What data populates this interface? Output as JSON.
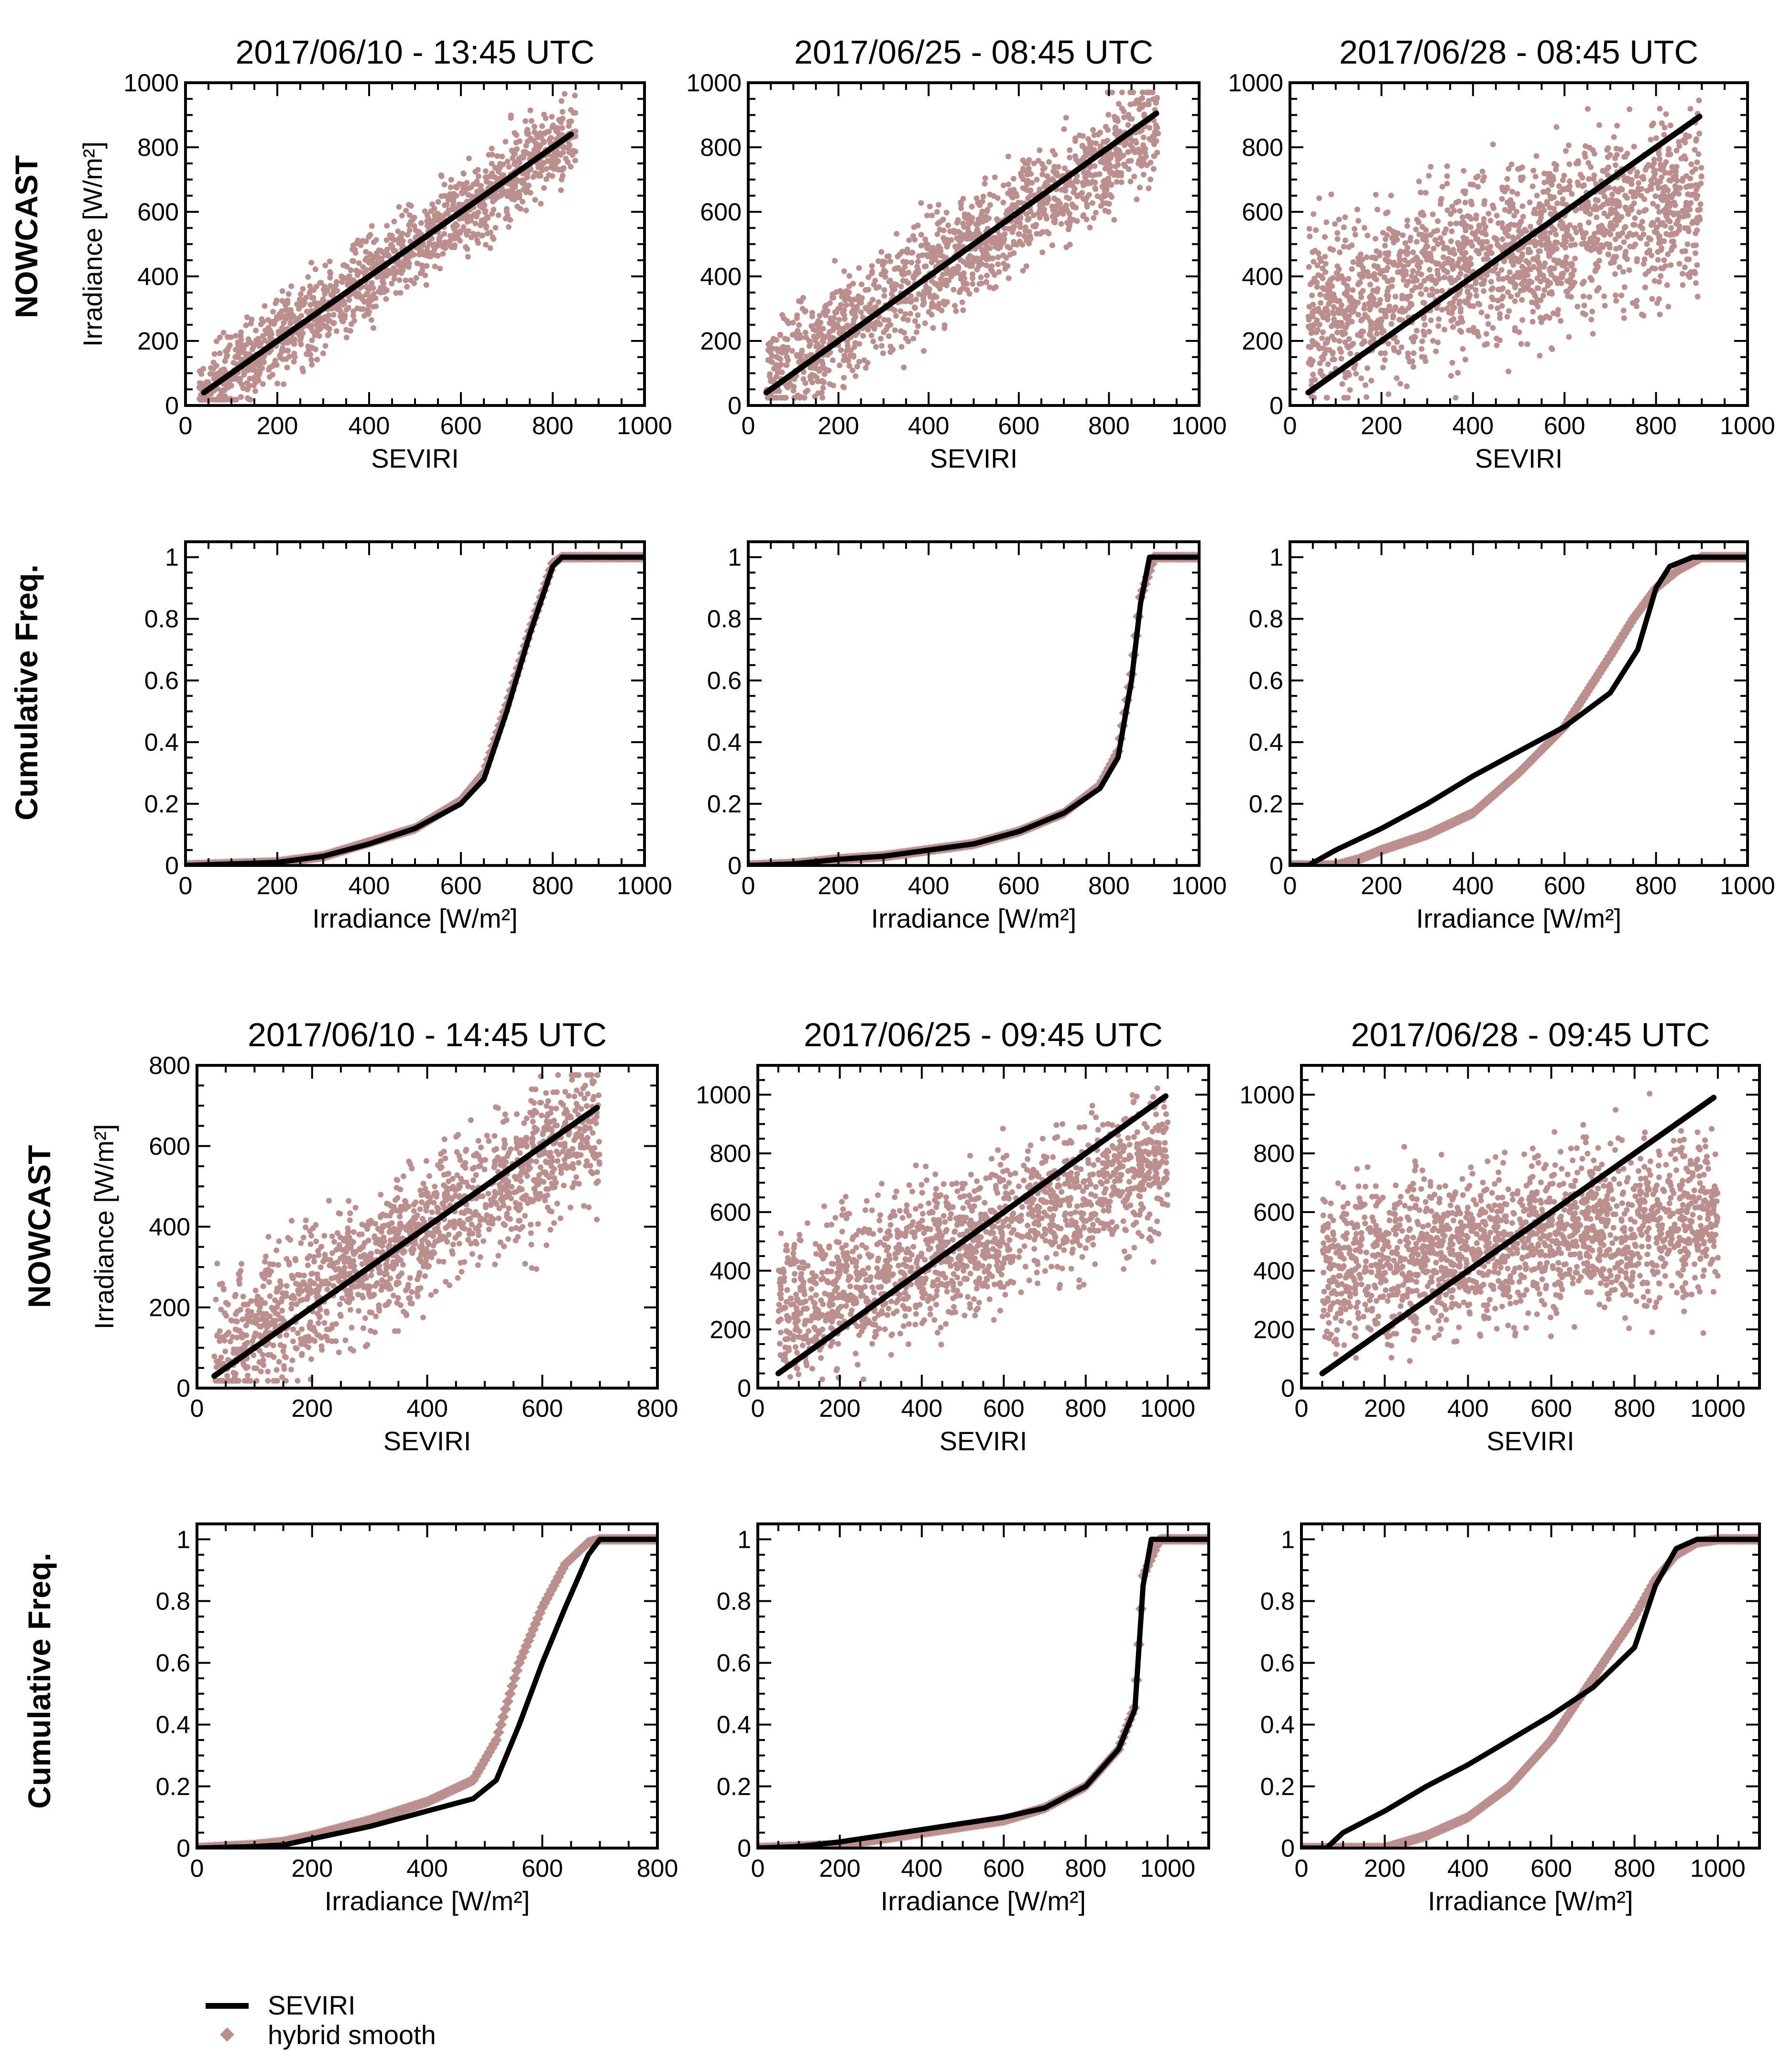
{
  "figure": {
    "row_labels": [
      "NOWCAST",
      "Cumulative Freq.",
      "NOWCAST",
      "Cumulative Freq."
    ],
    "legend": {
      "entries": [
        {
          "label": "SEVIRI",
          "color": "#000000",
          "marker": "line"
        },
        {
          "label": "hybrid smooth",
          "color": "#bc8f8f",
          "marker": "diamond"
        }
      ]
    },
    "colors": {
      "scatter": "#bc8f8f",
      "line": "#000000",
      "hybrid": "#bc8f8f",
      "accent_blue": "#2a36b1"
    }
  },
  "chart_data": [
    {
      "type": "scatter",
      "title": "2017/06/10 - 13:45 UTC",
      "xlabel": "SEVIRI",
      "ylabel": "Irradiance [W/m²]",
      "xlim": [
        0,
        1000
      ],
      "ylim": [
        0,
        1000
      ],
      "xticks": [
        0,
        200,
        400,
        600,
        800,
        1000
      ],
      "yticks": [
        0,
        200,
        400,
        600,
        800,
        1000
      ],
      "fit_line": {
        "x": [
          40,
          840
        ],
        "y": [
          40,
          840
        ]
      },
      "point_cloud": {
        "x_range": [
          30,
          850
        ],
        "slope": 1.0,
        "spread": 110,
        "n": 1400
      }
    },
    {
      "type": "scatter",
      "title": "2017/06/25 - 08:45 UTC",
      "xlabel": "SEVIRI",
      "ylabel": "",
      "xlim": [
        0,
        1000
      ],
      "ylim": [
        0,
        1000
      ],
      "xticks": [
        0,
        200,
        400,
        600,
        800,
        1000
      ],
      "yticks": [
        0,
        200,
        400,
        600,
        800,
        1000
      ],
      "fit_line": {
        "x": [
          40,
          905
        ],
        "y": [
          40,
          905
        ]
      },
      "point_cloud": {
        "x_range": [
          40,
          910
        ],
        "slope": 0.9,
        "spread": 140,
        "n": 1400
      }
    },
    {
      "type": "scatter",
      "title": "2017/06/28 - 08:45 UTC",
      "xlabel": "SEVIRI",
      "ylabel": "",
      "xlim": [
        0,
        1000
      ],
      "ylim": [
        0,
        1000
      ],
      "xticks": [
        0,
        200,
        400,
        600,
        800,
        1000
      ],
      "yticks": [
        0,
        200,
        400,
        600,
        800,
        1000
      ],
      "fit_line": {
        "x": [
          40,
          895
        ],
        "y": [
          40,
          895
        ]
      },
      "point_cloud": {
        "x_range": [
          40,
          900
        ],
        "slope": 0.45,
        "spread": 230,
        "n": 1800
      }
    },
    {
      "type": "line",
      "title": "",
      "xlabel": "Irradiance [W/m²]",
      "ylabel": "",
      "xlim": [
        0,
        1000
      ],
      "ylim": [
        0,
        1.05
      ],
      "xticks": [
        0,
        200,
        400,
        600,
        800,
        1000
      ],
      "yticks": [
        0,
        0.2,
        0.4,
        0.6,
        0.8,
        1
      ],
      "series": [
        {
          "name": "SEVIRI",
          "x": [
            0,
            100,
            200,
            300,
            400,
            500,
            600,
            650,
            700,
            750,
            800,
            820,
            1000
          ],
          "y": [
            0,
            0.005,
            0.01,
            0.03,
            0.07,
            0.12,
            0.2,
            0.28,
            0.5,
            0.75,
            0.97,
            1,
            1
          ]
        },
        {
          "name": "hybrid smooth",
          "x": [
            0,
            100,
            200,
            300,
            400,
            500,
            600,
            650,
            700,
            750,
            800,
            820,
            1000
          ],
          "y": [
            0,
            0.005,
            0.01,
            0.03,
            0.075,
            0.12,
            0.21,
            0.3,
            0.52,
            0.76,
            0.98,
            1,
            1
          ]
        }
      ]
    },
    {
      "type": "line",
      "title": "",
      "xlabel": "Irradiance [W/m²]",
      "ylabel": "",
      "xlim": [
        0,
        1000
      ],
      "ylim": [
        0,
        1.05
      ],
      "xticks": [
        0,
        200,
        400,
        600,
        800,
        1000
      ],
      "yticks": [
        0,
        0.2,
        0.4,
        0.6,
        0.8,
        1
      ],
      "series": [
        {
          "name": "SEVIRI",
          "x": [
            0,
            100,
            200,
            300,
            400,
            500,
            600,
            700,
            780,
            820,
            850,
            870,
            890,
            1000
          ],
          "y": [
            0,
            0.005,
            0.02,
            0.03,
            0.05,
            0.07,
            0.11,
            0.17,
            0.25,
            0.35,
            0.6,
            0.85,
            1,
            1
          ]
        },
        {
          "name": "hybrid smooth",
          "x": [
            0,
            100,
            200,
            300,
            400,
            500,
            600,
            700,
            780,
            820,
            850,
            870,
            900,
            1000
          ],
          "y": [
            0,
            0.005,
            0.02,
            0.03,
            0.05,
            0.07,
            0.11,
            0.17,
            0.26,
            0.37,
            0.62,
            0.87,
            1,
            1
          ]
        }
      ]
    },
    {
      "type": "line",
      "title": "",
      "xlabel": "Irradiance [W/m²]",
      "ylabel": "",
      "xlim": [
        0,
        1000
      ],
      "ylim": [
        0,
        1.05
      ],
      "xticks": [
        0,
        200,
        400,
        600,
        800,
        1000
      ],
      "yticks": [
        0,
        0.2,
        0.4,
        0.6,
        0.8,
        1
      ],
      "series": [
        {
          "name": "SEVIRI",
          "x": [
            0,
            40,
            100,
            200,
            300,
            400,
            500,
            600,
            700,
            760,
            800,
            830,
            880,
            1000
          ],
          "y": [
            0,
            0,
            0.05,
            0.12,
            0.2,
            0.29,
            0.37,
            0.45,
            0.56,
            0.7,
            0.9,
            0.97,
            1,
            1
          ]
        },
        {
          "name": "hybrid smooth",
          "x": [
            0,
            100,
            150,
            200,
            300,
            400,
            500,
            600,
            700,
            750,
            800,
            850,
            900,
            1000
          ],
          "y": [
            0,
            0,
            0.02,
            0.05,
            0.1,
            0.17,
            0.3,
            0.45,
            0.68,
            0.8,
            0.9,
            0.96,
            1,
            1
          ]
        }
      ]
    },
    {
      "type": "scatter",
      "title": "2017/06/10 - 14:45 UTC",
      "xlabel": "SEVIRI",
      "ylabel": "Irradiance [W/m²]",
      "xlim": [
        0,
        800
      ],
      "ylim": [
        0,
        800
      ],
      "xticks": [
        0,
        200,
        400,
        600,
        800
      ],
      "yticks": [
        0,
        200,
        400,
        600,
        800
      ],
      "fit_line": {
        "x": [
          30,
          695
        ],
        "y": [
          30,
          695
        ]
      },
      "point_cloud": {
        "x_range": [
          30,
          700
        ],
        "slope": 0.85,
        "spread": 150,
        "n": 1500
      }
    },
    {
      "type": "scatter",
      "title": "2017/06/25 - 09:45 UTC",
      "xlabel": "SEVIRI",
      "ylabel": "",
      "xlim": [
        0,
        1100
      ],
      "ylim": [
        0,
        1100
      ],
      "xticks": [
        0,
        200,
        400,
        600,
        800,
        1000
      ],
      "yticks": [
        0,
        200,
        400,
        600,
        800,
        1000
      ],
      "fit_line": {
        "x": [
          50,
          995
        ],
        "y": [
          50,
          995
        ]
      },
      "point_cloud": {
        "x_range": [
          50,
          1000
        ],
        "slope": 0.55,
        "spread": 210,
        "n": 1600
      }
    },
    {
      "type": "scatter",
      "title": "2017/06/28 - 09:45 UTC",
      "xlabel": "SEVIRI",
      "ylabel": "",
      "xlim": [
        0,
        1100
      ],
      "ylim": [
        0,
        1100
      ],
      "xticks": [
        0,
        200,
        400,
        600,
        800,
        1000
      ],
      "yticks": [
        0,
        200,
        400,
        600,
        800,
        1000
      ],
      "fit_line": {
        "x": [
          50,
          990
        ],
        "y": [
          50,
          990
        ]
      },
      "point_cloud": {
        "x_range": [
          50,
          1000
        ],
        "slope": 0.2,
        "spread": 230,
        "n": 1800
      }
    },
    {
      "type": "line",
      "title": "",
      "xlabel": "Irradiance [W/m²]",
      "ylabel": "",
      "xlim": [
        0,
        800
      ],
      "ylim": [
        0,
        1.05
      ],
      "xticks": [
        0,
        200,
        400,
        600,
        800
      ],
      "yticks": [
        0,
        0.2,
        0.4,
        0.6,
        0.8,
        1
      ],
      "series": [
        {
          "name": "SEVIRI",
          "x": [
            0,
            100,
            150,
            200,
            300,
            400,
            480,
            520,
            560,
            600,
            640,
            680,
            700,
            800
          ],
          "y": [
            0,
            0.005,
            0.01,
            0.03,
            0.07,
            0.12,
            0.16,
            0.22,
            0.4,
            0.6,
            0.78,
            0.95,
            1,
            1
          ]
        },
        {
          "name": "hybrid smooth",
          "x": [
            0,
            100,
            150,
            200,
            300,
            400,
            480,
            520,
            560,
            600,
            640,
            680,
            700,
            800
          ],
          "y": [
            0,
            0.01,
            0.02,
            0.04,
            0.09,
            0.15,
            0.22,
            0.35,
            0.6,
            0.78,
            0.92,
            0.99,
            1,
            1
          ]
        }
      ]
    },
    {
      "type": "line",
      "title": "",
      "xlabel": "Irradiance [W/m²]",
      "ylabel": "",
      "xlim": [
        0,
        1100
      ],
      "ylim": [
        0,
        1.05
      ],
      "xticks": [
        0,
        200,
        400,
        600,
        800,
        1000
      ],
      "yticks": [
        0,
        0.2,
        0.4,
        0.6,
        0.8,
        1
      ],
      "series": [
        {
          "name": "SEVIRI",
          "x": [
            0,
            100,
            200,
            300,
            400,
            500,
            600,
            700,
            800,
            880,
            920,
            940,
            960,
            1100
          ],
          "y": [
            0,
            0.005,
            0.02,
            0.04,
            0.06,
            0.08,
            0.1,
            0.13,
            0.2,
            0.32,
            0.45,
            0.85,
            1,
            1
          ]
        },
        {
          "name": "hybrid smooth",
          "x": [
            0,
            100,
            200,
            300,
            400,
            500,
            600,
            700,
            800,
            880,
            920,
            940,
            980,
            1100
          ],
          "y": [
            0,
            0.005,
            0.01,
            0.03,
            0.05,
            0.07,
            0.09,
            0.13,
            0.2,
            0.32,
            0.46,
            0.88,
            1,
            1
          ]
        }
      ]
    },
    {
      "type": "line",
      "title": "",
      "xlabel": "Irradiance [W/m²]",
      "ylabel": "",
      "xlim": [
        0,
        1100
      ],
      "ylim": [
        0,
        1.05
      ],
      "xticks": [
        0,
        200,
        400,
        600,
        800,
        1000
      ],
      "yticks": [
        0,
        0.2,
        0.4,
        0.6,
        0.8,
        1
      ],
      "series": [
        {
          "name": "SEVIRI",
          "x": [
            0,
            60,
            100,
            200,
            300,
            400,
            500,
            600,
            700,
            800,
            850,
            900,
            950,
            1100
          ],
          "y": [
            0,
            0,
            0.05,
            0.12,
            0.2,
            0.27,
            0.35,
            0.43,
            0.52,
            0.65,
            0.85,
            0.97,
            1,
            1
          ]
        },
        {
          "name": "hybrid smooth",
          "x": [
            0,
            200,
            250,
            300,
            400,
            500,
            600,
            700,
            800,
            850,
            900,
            950,
            1000,
            1100
          ],
          "y": [
            0,
            0,
            0.02,
            0.04,
            0.1,
            0.2,
            0.35,
            0.55,
            0.75,
            0.87,
            0.95,
            0.99,
            1,
            1
          ]
        }
      ]
    }
  ]
}
